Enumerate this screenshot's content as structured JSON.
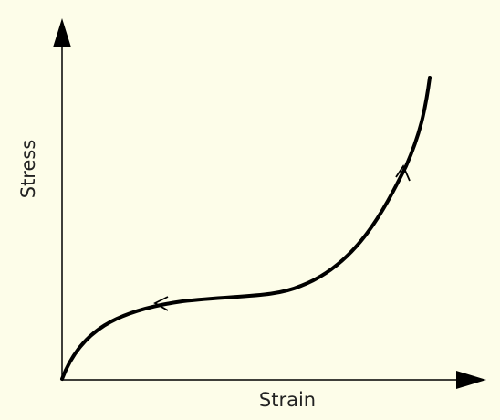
{
  "axes": {
    "y_label": "Stress",
    "x_label": "Strain"
  }
}
